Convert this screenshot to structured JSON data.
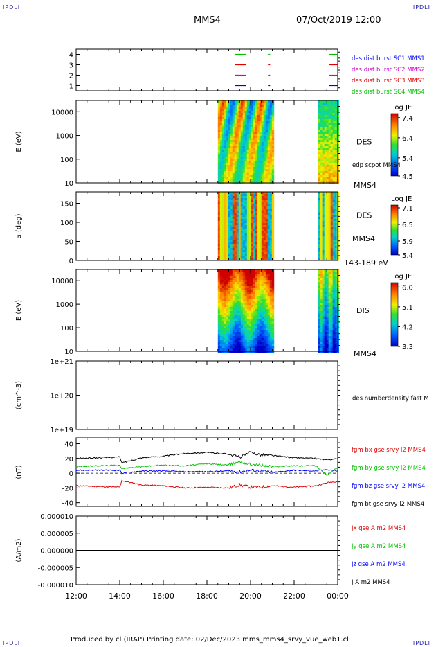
{
  "corner_tag": "IPDLI",
  "header": {
    "spacecraft": "MMS4",
    "datetime": "07/Oct/2019 12:00"
  },
  "footer": "Produced by cl (IRAP)   Printing date: 02/Dec/2023   mms_mms4_srvy_vue_web1.cl",
  "colors": {
    "mms1": "#0000ff",
    "mms2": "#d000d0",
    "mms3": "#e00000",
    "mms4": "#00c000",
    "bx": "#e00000",
    "by": "#00c000",
    "bz": "#0000ff",
    "bt": "#000000"
  },
  "chart_data": [
    {
      "type": "line",
      "panel": "burst-availability",
      "ylim": [
        0.5,
        4.5
      ],
      "y_ticks": [
        "1",
        "2",
        "3",
        "4"
      ],
      "legend": [
        "des dist burst SC1 MMS1",
        "des dist burst SC2 MMS2",
        "des dist burst SC3 MMS3",
        "des dist burst SC4 MMS4"
      ],
      "intervals_hours": [
        [
          19.3,
          19.8
        ],
        [
          20.8,
          20.9
        ],
        [
          23.6,
          24.0
        ]
      ]
    },
    {
      "type": "heatmap",
      "panel": "des-energy",
      "ylabel": "E (eV)",
      "y_scale": "log",
      "ylim": [
        10,
        30000
      ],
      "y_ticks": [
        "10",
        "100",
        "1000",
        "10000"
      ],
      "label": "DES",
      "sublabel": "edp scpot MMS4",
      "corner_label": "MMS4",
      "colorbar": {
        "title": "Log JE",
        "ticks": [
          "7.4",
          "6.4",
          "5.4",
          "4.5"
        ],
        "range": [
          4.5,
          7.6
        ]
      },
      "data_intervals_hours": [
        [
          18.5,
          21.0
        ],
        [
          23.1,
          24.0
        ]
      ]
    },
    {
      "type": "heatmap",
      "panel": "des-pitch-angle",
      "ylabel": "a (deg)",
      "ylim": [
        0,
        180
      ],
      "y_ticks": [
        "0",
        "50",
        "100",
        "150"
      ],
      "label": "DES",
      "sublabel": "MMS4",
      "corner_label": "143-189 eV",
      "colorbar": {
        "title": "Log JE",
        "ticks": [
          "7.1",
          "6.5",
          "5.9",
          "5.4"
        ],
        "range": [
          5.4,
          7.2
        ]
      },
      "data_intervals_hours": [
        [
          18.5,
          21.0
        ],
        [
          23.1,
          24.0
        ]
      ]
    },
    {
      "type": "heatmap",
      "panel": "dis-energy",
      "ylabel": "E (eV)",
      "y_scale": "log",
      "ylim": [
        10,
        30000
      ],
      "y_ticks": [
        "10",
        "100",
        "1000",
        "10000"
      ],
      "label": "DIS",
      "corner_label": "MMS4",
      "colorbar": {
        "title": "Log JE",
        "ticks": [
          "6.0",
          "5.1",
          "4.2",
          "3.3"
        ],
        "range": [
          3.3,
          6.2
        ]
      },
      "data_intervals_hours": [
        [
          18.5,
          21.0
        ],
        [
          23.1,
          24.0
        ]
      ]
    },
    {
      "type": "line",
      "panel": "density",
      "ylabel": "(cm^-3)",
      "y_scale": "log",
      "ylim": [
        1e+19,
        1e+21
      ],
      "y_ticks": [
        "1e+19",
        "1e+20",
        "1e+21"
      ],
      "legend": [
        "des numberdensity fast M"
      ]
    },
    {
      "type": "line",
      "panel": "magnetic-field",
      "ylabel": "(nT)",
      "ylim": [
        -45,
        48
      ],
      "y_ticks": [
        "-40",
        "-20",
        "0",
        "20",
        "40"
      ],
      "legend": [
        "fgm bx gse srvy l2 MMS4",
        "fgm by gse srvy l2 MMS4",
        "fgm bz gse srvy l2 MMS4",
        "fgm bt gse srvy l2 MMS4"
      ],
      "x_hours": [
        12,
        13,
        14,
        14.1,
        15,
        16,
        17,
        18,
        19,
        19.5,
        20,
        20.5,
        21,
        22,
        23,
        23.5,
        24
      ],
      "series": [
        {
          "name": "fgm bx gse srvy l2 MMS4",
          "values": [
            -17,
            -18,
            -19,
            -10,
            -16,
            -17,
            -20,
            -19,
            -20,
            -16,
            -19,
            -19,
            -17,
            -19,
            -17,
            -13,
            -11
          ]
        },
        {
          "name": "fgm by gse srvy l2 MMS4",
          "values": [
            9,
            10,
            11,
            6,
            9,
            11,
            10,
            13,
            11,
            16,
            12,
            11,
            9,
            10,
            10,
            -3,
            8
          ]
        },
        {
          "name": "fgm bz gse srvy l2 MMS4",
          "values": [
            4,
            4,
            4,
            0,
            3,
            3,
            2,
            2,
            3,
            2,
            4,
            3,
            1,
            4,
            3,
            5,
            3
          ]
        },
        {
          "name": "fgm bt gse srvy l2 MMS4",
          "values": [
            20,
            21,
            22,
            14,
            21,
            23,
            27,
            28,
            26,
            22,
            28,
            25,
            24,
            21,
            20,
            18,
            20
          ]
        }
      ]
    },
    {
      "type": "line",
      "panel": "current-density",
      "ylabel": "(A/m2)",
      "ylim": [
        -1e-05,
        1e-05
      ],
      "y_ticks": [
        "0.000010",
        "0.000005",
        "0.000000",
        "-0.000005",
        "-0.000010"
      ],
      "legend": [
        "Jx gse A m2 MMS4",
        "Jy gse A m2 MMS4",
        "Jz gse A m2 MMS4",
        "J A m2 MMS4"
      ],
      "x_hours": [
        12,
        24
      ],
      "series": [
        {
          "name": "J A m2 MMS4",
          "values": [
            0,
            0
          ]
        }
      ]
    }
  ],
  "x_axis": {
    "ticks": [
      "12:00",
      "14:00",
      "16:00",
      "18:00",
      "20:00",
      "22:00",
      "00:00"
    ],
    "range_hours": [
      12,
      24
    ]
  }
}
